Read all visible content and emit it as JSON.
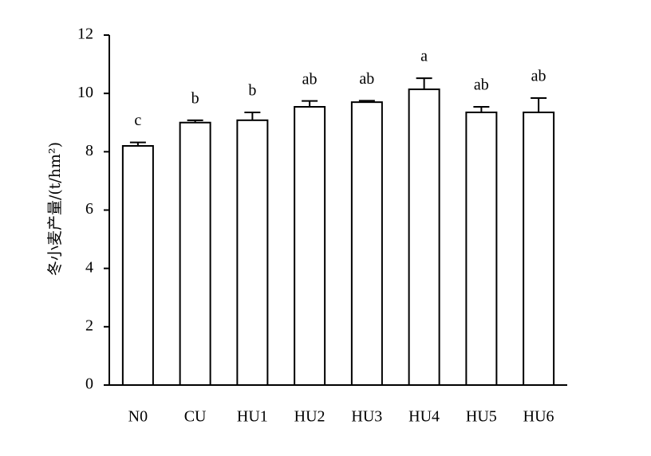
{
  "chart_data": {
    "type": "bar",
    "y_label": "冬小麦产量/(t/hm²)",
    "categories": [
      "N0",
      "CU",
      "HU1",
      "HU2",
      "HU3",
      "HU4",
      "HU5",
      "HU6"
    ],
    "values": [
      8.2,
      9.0,
      9.08,
      9.54,
      9.7,
      10.14,
      9.35,
      9.35
    ],
    "errors": [
      0.12,
      0.08,
      0.27,
      0.2,
      0.05,
      0.38,
      0.19,
      0.49
    ],
    "significance": [
      "c",
      "b",
      "b",
      "ab",
      "ab",
      "a",
      "ab",
      "ab"
    ],
    "color": "#ffffff",
    "ylim": [
      0,
      12
    ],
    "yticks": [
      0,
      2,
      4,
      6,
      8,
      10,
      12
    ],
    "grid": false
  }
}
